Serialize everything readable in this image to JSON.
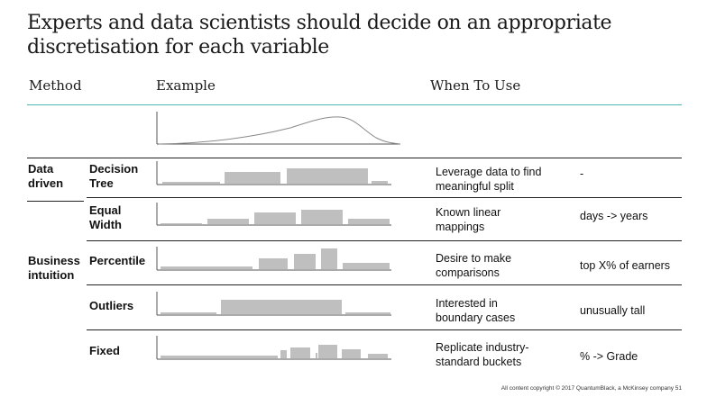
{
  "title": "Experts and data scientists should decide on an appropriate discretisation for each variable",
  "headers": {
    "method": "Method",
    "example": "Example",
    "when": "When To Use"
  },
  "groups": {
    "data_driven": "Data driven",
    "business": "Business intuition"
  },
  "rows": [
    {
      "method": "Decision Tree",
      "when": "Leverage  data to find meaningful  split",
      "example": "-"
    },
    {
      "method": "Equal Width",
      "when": "Known linear mappings",
      "example": "days -> years"
    },
    {
      "method": "Percentile",
      "when": "Desire to make comparisons",
      "example": "top X% of earners"
    },
    {
      "method": "Outliers",
      "when": "Interested in boundary cases",
      "example": "unusually tall"
    },
    {
      "method": "Fixed",
      "when": "Replicate industry-standard buckets",
      "example": "% -> Grade"
    }
  ],
  "colors": {
    "accent_line": "#4fb7b0",
    "bar": "#bfbfbf",
    "curve": "#888888"
  },
  "footer": "All content copyright © 2017 QuantumBlack, a McKinsey company     51"
}
